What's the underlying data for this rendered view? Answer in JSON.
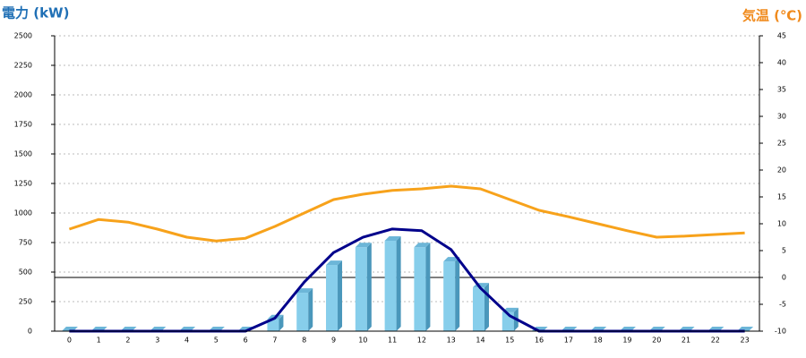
{
  "chart_data": {
    "type": "bar_line",
    "y_label": "電力 (kW)",
    "y2_label": "気温 (℃)",
    "categories": [
      "0",
      "1",
      "2",
      "3",
      "4",
      "5",
      "6",
      "7",
      "8",
      "9",
      "10",
      "11",
      "12",
      "13",
      "14",
      "15",
      "16",
      "17",
      "18",
      "19",
      "20",
      "21",
      "22",
      "23"
    ],
    "series": [
      {
        "type": "bar",
        "color": "#87ceeb",
        "values": [
          0,
          0,
          0,
          0,
          0,
          0,
          0,
          100,
          325,
          560,
          710,
          765,
          710,
          590,
          370,
          160,
          0,
          0,
          0,
          0,
          0,
          0,
          0,
          0
        ]
      },
      {
        "type": "line",
        "color": "#00008b",
        "values": [
          0,
          0,
          0,
          0,
          0,
          0,
          0,
          110,
          415,
          665,
          795,
          865,
          850,
          690,
          365,
          130,
          0,
          0,
          0,
          0,
          0,
          0,
          0,
          0
        ]
      },
      {
        "type": "line",
        "axis": "y2",
        "color": "#f7a21b",
        "values": [
          9,
          10.8,
          10.3,
          9,
          7.5,
          6.8,
          7.3,
          9.5,
          12,
          14.5,
          15.5,
          16.2,
          16.5,
          17,
          16.5,
          14.5,
          12.5,
          11.3,
          10,
          8.7,
          7.5,
          7.7,
          8,
          8.3
        ]
      }
    ],
    "ylim": [
      0,
      2500
    ],
    "yticks": [
      0,
      250,
      500,
      750,
      1000,
      1250,
      1500,
      1750,
      2000,
      2250,
      2500
    ],
    "y2lim": [
      -10,
      45
    ],
    "y2ticks": [
      -10,
      -5,
      0,
      5,
      10,
      15,
      20,
      25,
      30,
      35,
      40,
      45
    ],
    "y2_zero_line": 0,
    "grid": true
  }
}
